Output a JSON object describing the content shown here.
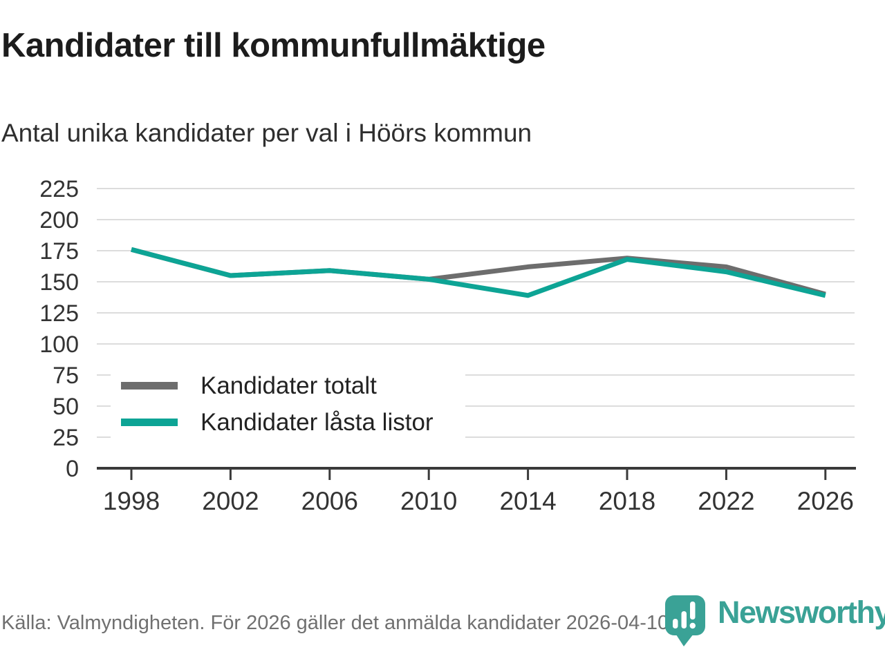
{
  "header": {
    "title": "Kandidater till kommunfullmäktige",
    "subtitle": "Antal unika kandidater per val i Höörs kommun"
  },
  "chart_data": {
    "type": "line",
    "title": "Kandidater till kommunfullmäktige",
    "subtitle": "Antal unika kandidater per val i Höörs kommun",
    "categories": [
      "1998",
      "2002",
      "2006",
      "2010",
      "2014",
      "2018",
      "2022",
      "2026"
    ],
    "series": [
      {
        "name": "Kandidater totalt",
        "color": "#6d6d6d",
        "values": [
          176,
          155,
          159,
          152,
          162,
          169,
          162,
          140
        ]
      },
      {
        "name": "Kandidater låsta listor",
        "color": "#0da495",
        "values": [
          176,
          155,
          159,
          152,
          139,
          168,
          158,
          139
        ]
      }
    ],
    "xlabel": "",
    "ylabel": "",
    "ylim": [
      0,
      225
    ],
    "yticks": [
      0,
      25,
      50,
      75,
      100,
      125,
      150,
      175,
      200,
      225
    ],
    "grid": "horizontal",
    "gridline_color": "#dcdcdc",
    "axis_color": "#3a3a3a",
    "tick_label_color": "#333333",
    "legend_position": "inside-left-middle"
  },
  "footer": {
    "source_text": "Källa: Valmyndigheten. För 2026 gäller det anmälda kandidater 2026-04-10.",
    "brand": "Newsworthy",
    "brand_color": "#3aa296"
  }
}
